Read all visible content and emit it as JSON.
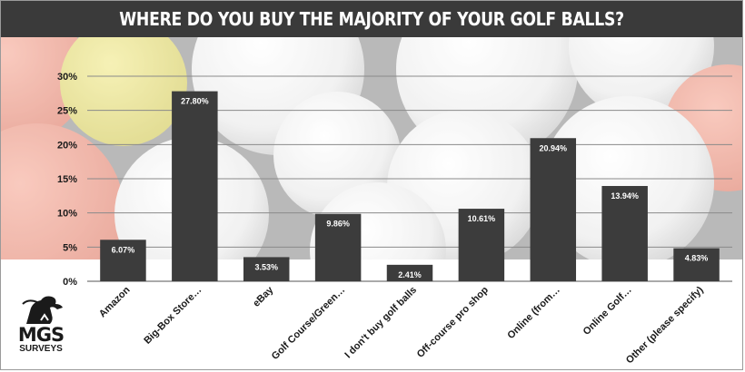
{
  "header": {
    "title": "WHERE DO YOU BUY THE MAJORITY OF YOUR GOLF BALLS?"
  },
  "logo": {
    "brand": "MGS",
    "subtitle": "SURVEYS"
  },
  "chart_data": {
    "type": "bar",
    "title": "WHERE DO YOU BUY THE MAJORITY OF YOUR GOLF BALLS?",
    "xlabel": "",
    "ylabel": "",
    "ylim": [
      0,
      30
    ],
    "y_ticks": [
      "0%",
      "5%",
      "10%",
      "15%",
      "20%",
      "25%",
      "30%"
    ],
    "y_tick_values": [
      0,
      5,
      10,
      15,
      20,
      25,
      30
    ],
    "grid": true,
    "categories": [
      "Amazon",
      "Big-Box Store…",
      "eBay",
      "Golf Course/Green…",
      "I don't buy golf balls",
      "Off-course pro shop",
      "Online (from…",
      "Online Golf…",
      "Other (please specify)"
    ],
    "values": [
      6.07,
      27.8,
      3.53,
      9.86,
      2.41,
      10.61,
      20.94,
      13.94,
      4.83
    ],
    "value_labels": [
      "6.07%",
      "27.80%",
      "3.53%",
      "9.86%",
      "2.41%",
      "10.61%",
      "20.94%",
      "13.94%",
      "4.83%"
    ],
    "bar_color": "#3c3c3c",
    "label_color": "#ffffff"
  },
  "colors": {
    "header": "#3a3a3a",
    "bar": "#3c3c3c",
    "grid": "#8a8a8a",
    "text": "#1a1a1a"
  }
}
